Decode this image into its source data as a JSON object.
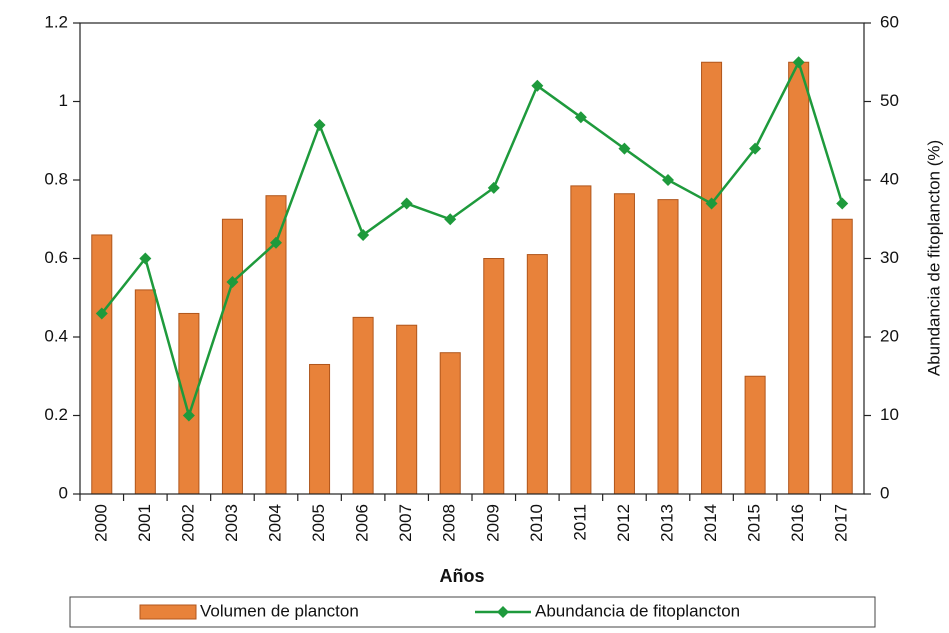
{
  "chart_data": {
    "type": "bar-line",
    "x_label": "Años",
    "y2_label": "Abundancia de fitoplancton (%)",
    "categories": [
      "2000",
      "2001",
      "2002",
      "2003",
      "2004",
      "2005",
      "2006",
      "2007",
      "2008",
      "2009",
      "2010",
      "2011",
      "2012",
      "2013",
      "2014",
      "2015",
      "2016",
      "2017"
    ],
    "series": [
      {
        "name": "Volumen de plancton",
        "type": "bar",
        "color": "#e8823a",
        "axis": "y",
        "values": [
          0.66,
          0.52,
          0.46,
          0.7,
          0.76,
          0.33,
          0.45,
          0.43,
          0.36,
          0.6,
          0.61,
          0.785,
          0.765,
          0.75,
          1.1,
          0.3,
          1.1,
          0.7
        ]
      },
      {
        "name": "Abundancia de fitoplancton",
        "type": "line",
        "color": "#1e9a3c",
        "axis": "y2",
        "values": [
          23,
          30,
          10,
          27,
          32,
          47,
          33,
          37,
          35,
          39,
          52,
          48,
          44,
          40,
          37,
          44,
          55,
          37
        ]
      }
    ],
    "ylim": [
      0,
      1.2
    ],
    "yticks": [
      0,
      0.2,
      0.4,
      0.6,
      0.8,
      1,
      1.2
    ],
    "y2lim": [
      0,
      60
    ],
    "y2ticks": [
      0,
      10,
      20,
      30,
      40,
      50,
      60
    ],
    "legend": "bottom"
  }
}
